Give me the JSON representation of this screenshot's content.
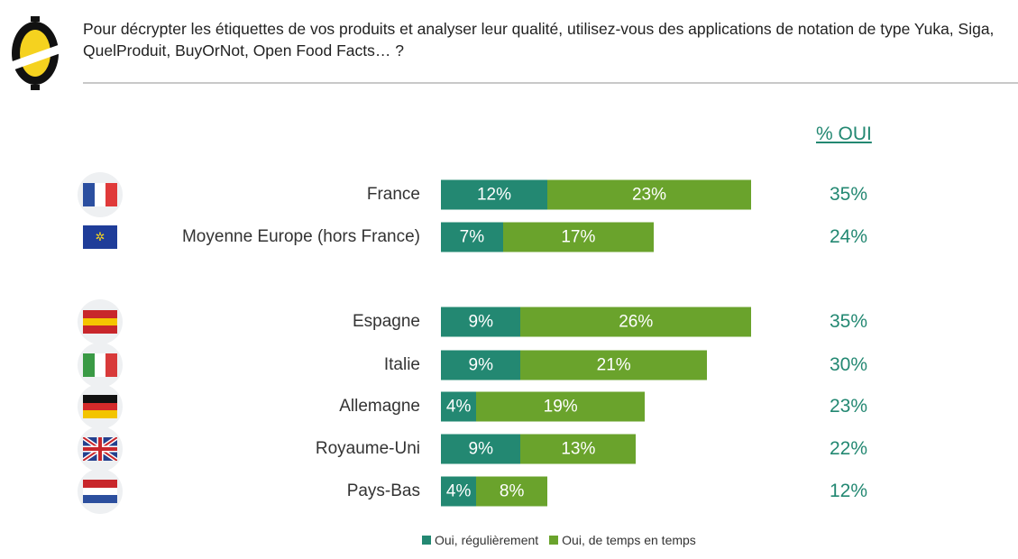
{
  "question": "Pour décrypter les étiquettes de vos produits et analyser leur qualité, utilisez-vous des applications de notation de type Yuka, Siga, QuelProduit, BuyOrNot, Open Food Facts… ?",
  "colors": {
    "regular": "#238872",
    "sometimes": "#6aa32c"
  },
  "chart_data": {
    "type": "bar",
    "orientation": "horizontal-stacked",
    "total_header": "% OUI",
    "categories": [
      "France",
      "Moyenne Europe (hors France)",
      "Espagne",
      "Italie",
      "Allemagne",
      "Royaume-Uni",
      "Pays-Bas"
    ],
    "series": [
      {
        "name": "Oui, régulièrement",
        "values": [
          12,
          7,
          9,
          9,
          4,
          9,
          4
        ],
        "labels": [
          "12%",
          "7%",
          "9%",
          "9%",
          "4%",
          "9%",
          "4%"
        ]
      },
      {
        "name": "Oui, de temps en temps",
        "values": [
          23,
          17,
          26,
          21,
          19,
          13,
          8
        ],
        "labels": [
          "23%",
          "17%",
          "26%",
          "21%",
          "19%",
          "13%",
          "8%"
        ]
      }
    ],
    "totals": [
      "35%",
      "24%",
      "35%",
      "30%",
      "23%",
      "22%",
      "12%"
    ],
    "legend": [
      "Oui, régulièrement",
      "Oui, de temps en temps"
    ],
    "legend_position": "bottom"
  }
}
